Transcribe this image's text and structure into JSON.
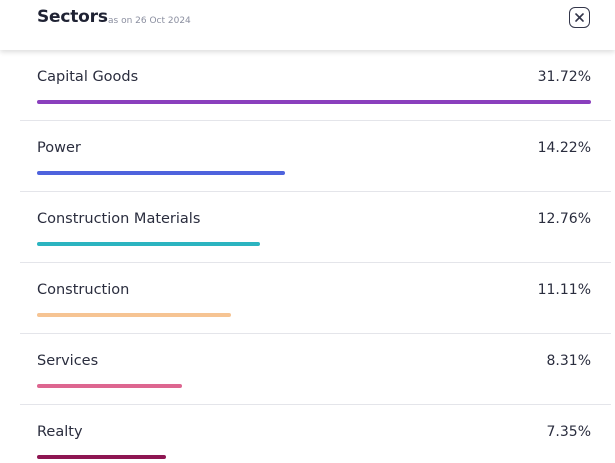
{
  "header": {
    "title": "Sectors",
    "subtitle": "as on 26 Oct 2024",
    "close_icon": "close-icon"
  },
  "sectors": [
    {
      "label": "Capital Goods",
      "percent_text": "31.72%",
      "fill": 1.0,
      "color": "#8a3fbd"
    },
    {
      "label": "Power",
      "percent_text": "14.22%",
      "fill": 0.448,
      "color": "#4e63dd"
    },
    {
      "label": "Construction Materials",
      "percent_text": "12.76%",
      "fill": 0.402,
      "color": "#2bb4c0"
    },
    {
      "label": "Construction",
      "percent_text": "11.11%",
      "fill": 0.35,
      "color": "#f6c493"
    },
    {
      "label": "Services",
      "percent_text": "8.31%",
      "fill": 0.262,
      "color": "#dd6690"
    },
    {
      "label": "Realty",
      "percent_text": "7.35%",
      "fill": 0.232,
      "color": "#8e1652"
    }
  ]
}
